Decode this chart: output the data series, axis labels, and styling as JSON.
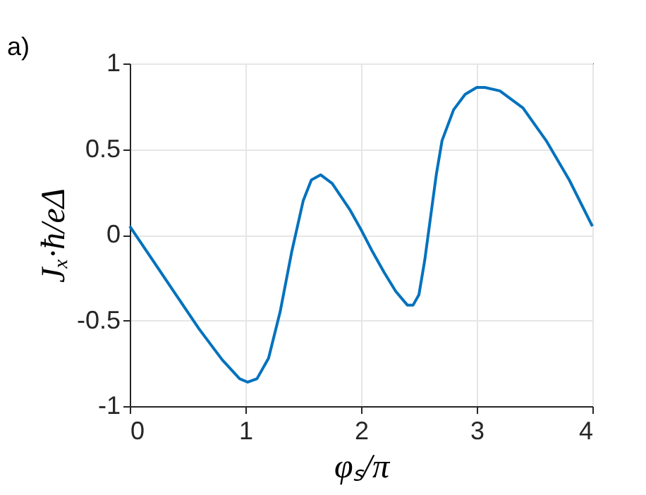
{
  "chart_data": {
    "type": "line",
    "xlabel": "φₛ/π",
    "ylabel": "Jₓ·ħ/eΔ",
    "annotations": [
      "a)"
    ],
    "x": [
      0,
      0.2,
      0.4,
      0.6,
      0.8,
      0.95,
      1.02,
      1.1,
      1.2,
      1.3,
      1.4,
      1.45,
      1.5,
      1.57,
      1.65,
      1.75,
      1.9,
      2.0,
      2.1,
      2.2,
      2.3,
      2.4,
      2.45,
      2.5,
      2.55,
      2.6,
      2.65,
      2.7,
      2.8,
      2.9,
      3.0,
      3.07,
      3.2,
      3.4,
      3.6,
      3.8,
      4.0
    ],
    "series": [
      {
        "color": "#0072bd",
        "values": [
          0.05,
          -0.15,
          -0.35,
          -0.55,
          -0.73,
          -0.84,
          -0.86,
          -0.84,
          -0.72,
          -0.45,
          -0.1,
          0.05,
          0.2,
          0.32,
          0.35,
          0.3,
          0.15,
          0.03,
          -0.1,
          -0.22,
          -0.33,
          -0.41,
          -0.41,
          -0.35,
          -0.15,
          0.1,
          0.35,
          0.55,
          0.73,
          0.82,
          0.86,
          0.86,
          0.84,
          0.74,
          0.55,
          0.32,
          0.05
        ]
      }
    ],
    "xlim": [
      0,
      4
    ],
    "xticks": [
      0,
      1,
      2,
      3,
      4
    ],
    "ylim": [
      -1,
      1
    ],
    "yticks": [
      -1,
      -0.5,
      0,
      0.5,
      1
    ],
    "grid": true,
    "line_style": "solid"
  }
}
